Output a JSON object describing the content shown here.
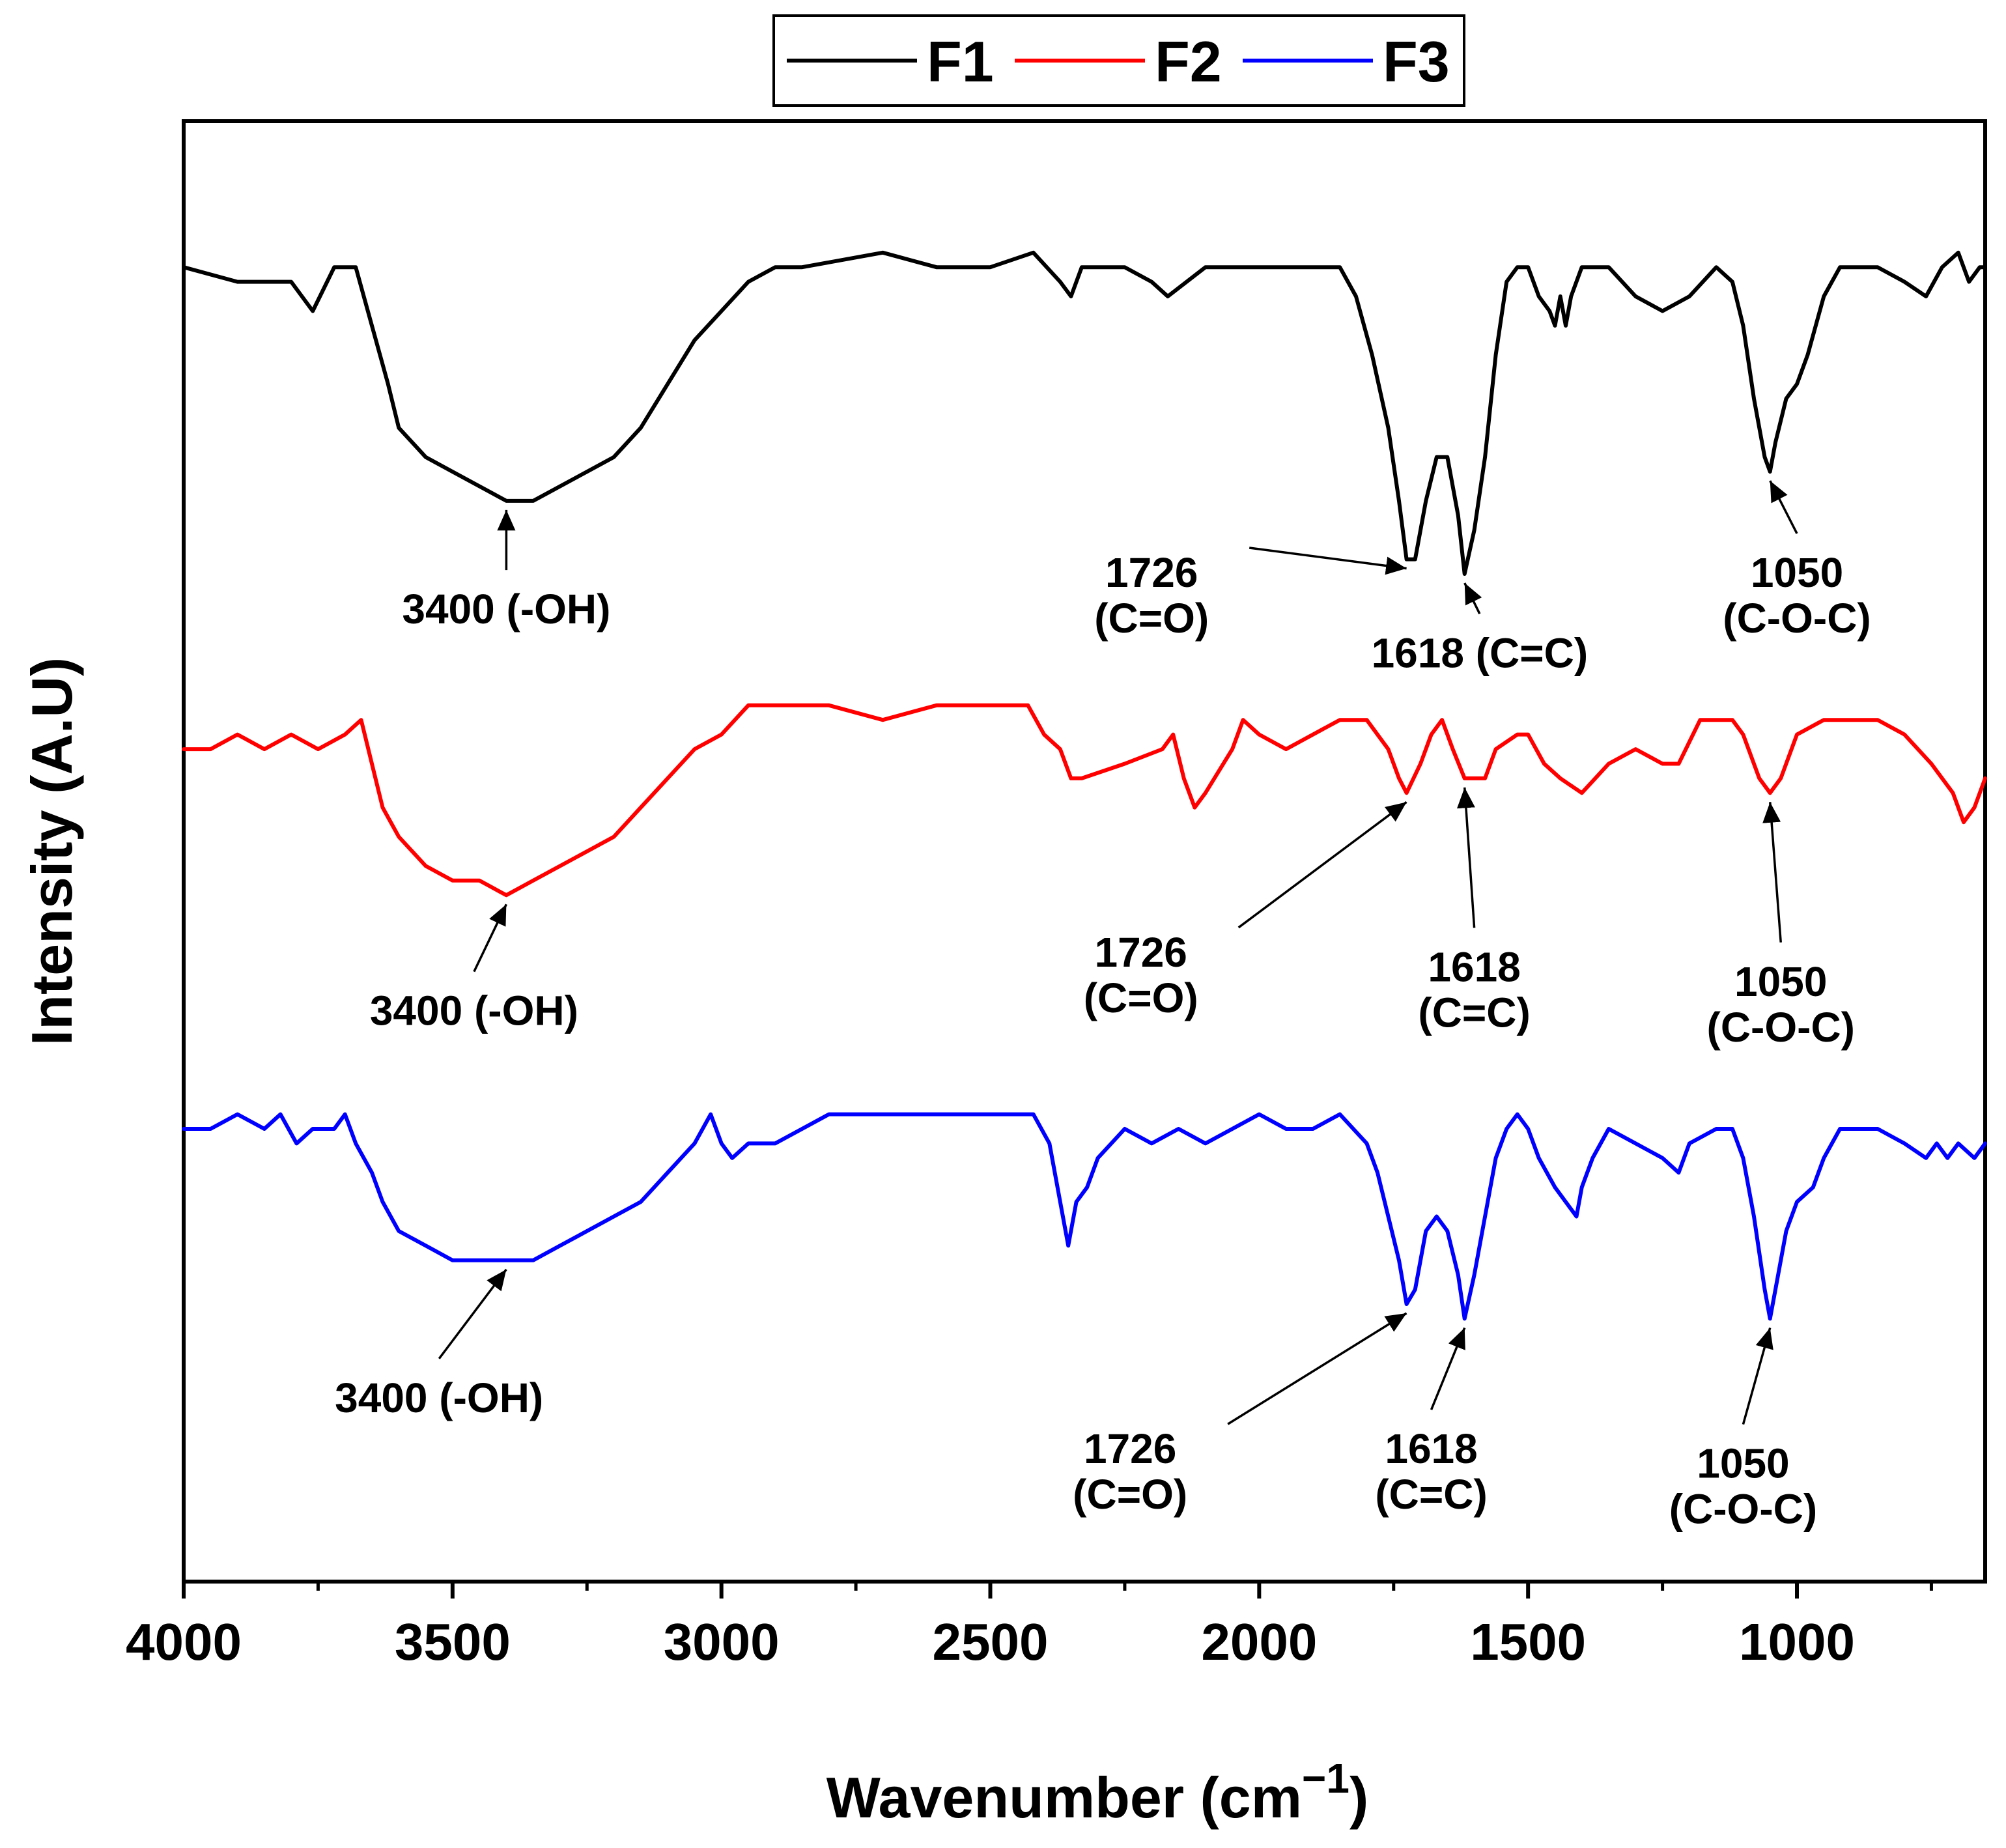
{
  "chart_data": {
    "type": "line",
    "title": "",
    "xlabel": "Wavenumber (cm",
    "xlabel_sup": "−1",
    "xlabel_close": ")",
    "ylabel": "Intensity (A.U)",
    "xlim": [
      4000,
      650
    ],
    "x_reversed": true,
    "x_ticks": [
      4000,
      3500,
      3000,
      2500,
      2000,
      1500,
      1000
    ],
    "x_tick_labels": [
      "4000",
      "3500",
      "3000",
      "2500",
      "2000",
      "1500",
      "1000"
    ],
    "y_ticks_shown": false,
    "grid": false,
    "legend": {
      "placement": "top-center",
      "entries": [
        "F1",
        "F2",
        "F3"
      ]
    },
    "colors": {
      "F1": "#000000",
      "F2": "#ff0000",
      "F3": "#0000ff"
    },
    "series": [
      {
        "name": "F1",
        "color": "#000000",
        "points": [
          [
            4000,
            0.9
          ],
          [
            3900,
            0.89
          ],
          [
            3800,
            0.89
          ],
          [
            3760,
            0.87
          ],
          [
            3720,
            0.9
          ],
          [
            3680,
            0.9
          ],
          [
            3650,
            0.86
          ],
          [
            3620,
            0.82
          ],
          [
            3600,
            0.79
          ],
          [
            3550,
            0.77
          ],
          [
            3500,
            0.76
          ],
          [
            3450,
            0.75
          ],
          [
            3400,
            0.74
          ],
          [
            3350,
            0.74
          ],
          [
            3300,
            0.75
          ],
          [
            3250,
            0.76
          ],
          [
            3200,
            0.77
          ],
          [
            3150,
            0.79
          ],
          [
            3100,
            0.82
          ],
          [
            3050,
            0.85
          ],
          [
            3000,
            0.87
          ],
          [
            2950,
            0.89
          ],
          [
            2900,
            0.9
          ],
          [
            2850,
            0.9
          ],
          [
            2700,
            0.91
          ],
          [
            2600,
            0.9
          ],
          [
            2500,
            0.9
          ],
          [
            2420,
            0.91
          ],
          [
            2370,
            0.89
          ],
          [
            2350,
            0.88
          ],
          [
            2330,
            0.9
          ],
          [
            2250,
            0.9
          ],
          [
            2200,
            0.89
          ],
          [
            2170,
            0.88
          ],
          [
            2100,
            0.9
          ],
          [
            2000,
            0.9
          ],
          [
            1900,
            0.9
          ],
          [
            1850,
            0.9
          ],
          [
            1820,
            0.88
          ],
          [
            1790,
            0.84
          ],
          [
            1760,
            0.79
          ],
          [
            1740,
            0.74
          ],
          [
            1726,
            0.7
          ],
          [
            1710,
            0.7
          ],
          [
            1690,
            0.74
          ],
          [
            1670,
            0.77
          ],
          [
            1650,
            0.77
          ],
          [
            1630,
            0.73
          ],
          [
            1618,
            0.69
          ],
          [
            1600,
            0.72
          ],
          [
            1580,
            0.77
          ],
          [
            1560,
            0.84
          ],
          [
            1540,
            0.89
          ],
          [
            1520,
            0.9
          ],
          [
            1500,
            0.9
          ],
          [
            1480,
            0.88
          ],
          [
            1460,
            0.87
          ],
          [
            1450,
            0.86
          ],
          [
            1440,
            0.88
          ],
          [
            1430,
            0.86
          ],
          [
            1420,
            0.88
          ],
          [
            1400,
            0.9
          ],
          [
            1350,
            0.9
          ],
          [
            1300,
            0.88
          ],
          [
            1250,
            0.87
          ],
          [
            1200,
            0.88
          ],
          [
            1150,
            0.9
          ],
          [
            1120,
            0.89
          ],
          [
            1100,
            0.86
          ],
          [
            1080,
            0.81
          ],
          [
            1060,
            0.77
          ],
          [
            1050,
            0.76
          ],
          [
            1040,
            0.78
          ],
          [
            1020,
            0.81
          ],
          [
            1000,
            0.82
          ],
          [
            980,
            0.84
          ],
          [
            950,
            0.88
          ],
          [
            920,
            0.9
          ],
          [
            880,
            0.9
          ],
          [
            850,
            0.9
          ],
          [
            800,
            0.89
          ],
          [
            760,
            0.88
          ],
          [
            730,
            0.9
          ],
          [
            700,
            0.91
          ],
          [
            680,
            0.89
          ],
          [
            660,
            0.9
          ],
          [
            650,
            0.9
          ]
        ]
      },
      {
        "name": "F2",
        "color": "#ff0000",
        "points": [
          [
            4000,
            0.57
          ],
          [
            3950,
            0.57
          ],
          [
            3900,
            0.58
          ],
          [
            3850,
            0.57
          ],
          [
            3800,
            0.58
          ],
          [
            3750,
            0.57
          ],
          [
            3700,
            0.58
          ],
          [
            3670,
            0.59
          ],
          [
            3650,
            0.56
          ],
          [
            3630,
            0.53
          ],
          [
            3600,
            0.51
          ],
          [
            3550,
            0.49
          ],
          [
            3500,
            0.48
          ],
          [
            3450,
            0.48
          ],
          [
            3400,
            0.47
          ],
          [
            3350,
            0.48
          ],
          [
            3300,
            0.49
          ],
          [
            3250,
            0.5
          ],
          [
            3200,
            0.51
          ],
          [
            3150,
            0.53
          ],
          [
            3100,
            0.55
          ],
          [
            3050,
            0.57
          ],
          [
            3000,
            0.58
          ],
          [
            2950,
            0.6
          ],
          [
            2900,
            0.6
          ],
          [
            2800,
            0.6
          ],
          [
            2700,
            0.59
          ],
          [
            2600,
            0.6
          ],
          [
            2500,
            0.6
          ],
          [
            2430,
            0.6
          ],
          [
            2400,
            0.58
          ],
          [
            2370,
            0.57
          ],
          [
            2350,
            0.55
          ],
          [
            2330,
            0.55
          ],
          [
            2250,
            0.56
          ],
          [
            2180,
            0.57
          ],
          [
            2160,
            0.58
          ],
          [
            2140,
            0.55
          ],
          [
            2120,
            0.53
          ],
          [
            2100,
            0.54
          ],
          [
            2050,
            0.57
          ],
          [
            2030,
            0.59
          ],
          [
            2000,
            0.58
          ],
          [
            1950,
            0.57
          ],
          [
            1900,
            0.58
          ],
          [
            1850,
            0.59
          ],
          [
            1800,
            0.59
          ],
          [
            1760,
            0.57
          ],
          [
            1740,
            0.55
          ],
          [
            1726,
            0.54
          ],
          [
            1700,
            0.56
          ],
          [
            1680,
            0.58
          ],
          [
            1660,
            0.59
          ],
          [
            1640,
            0.57
          ],
          [
            1618,
            0.55
          ],
          [
            1600,
            0.55
          ],
          [
            1580,
            0.55
          ],
          [
            1560,
            0.57
          ],
          [
            1520,
            0.58
          ],
          [
            1500,
            0.58
          ],
          [
            1470,
            0.56
          ],
          [
            1440,
            0.55
          ],
          [
            1400,
            0.54
          ],
          [
            1350,
            0.56
          ],
          [
            1300,
            0.57
          ],
          [
            1250,
            0.56
          ],
          [
            1220,
            0.56
          ],
          [
            1180,
            0.59
          ],
          [
            1150,
            0.59
          ],
          [
            1120,
            0.59
          ],
          [
            1100,
            0.58
          ],
          [
            1070,
            0.55
          ],
          [
            1050,
            0.54
          ],
          [
            1030,
            0.55
          ],
          [
            1000,
            0.58
          ],
          [
            950,
            0.59
          ],
          [
            900,
            0.59
          ],
          [
            850,
            0.59
          ],
          [
            800,
            0.58
          ],
          [
            750,
            0.56
          ],
          [
            710,
            0.54
          ],
          [
            690,
            0.52
          ],
          [
            670,
            0.53
          ],
          [
            650,
            0.55
          ]
        ]
      },
      {
        "name": "F3",
        "color": "#0000ff",
        "points": [
          [
            4000,
            0.31
          ],
          [
            3950,
            0.31
          ],
          [
            3900,
            0.32
          ],
          [
            3850,
            0.31
          ],
          [
            3820,
            0.32
          ],
          [
            3790,
            0.3
          ],
          [
            3760,
            0.31
          ],
          [
            3720,
            0.31
          ],
          [
            3700,
            0.32
          ],
          [
            3680,
            0.3
          ],
          [
            3650,
            0.28
          ],
          [
            3630,
            0.26
          ],
          [
            3600,
            0.24
          ],
          [
            3550,
            0.23
          ],
          [
            3500,
            0.22
          ],
          [
            3450,
            0.22
          ],
          [
            3400,
            0.22
          ],
          [
            3350,
            0.22
          ],
          [
            3300,
            0.23
          ],
          [
            3250,
            0.24
          ],
          [
            3200,
            0.25
          ],
          [
            3150,
            0.26
          ],
          [
            3100,
            0.28
          ],
          [
            3050,
            0.3
          ],
          [
            3020,
            0.32
          ],
          [
            3000,
            0.3
          ],
          [
            2980,
            0.29
          ],
          [
            2950,
            0.3
          ],
          [
            2900,
            0.3
          ],
          [
            2850,
            0.31
          ],
          [
            2800,
            0.32
          ],
          [
            2700,
            0.32
          ],
          [
            2600,
            0.32
          ],
          [
            2500,
            0.32
          ],
          [
            2420,
            0.32
          ],
          [
            2390,
            0.3
          ],
          [
            2370,
            0.26
          ],
          [
            2355,
            0.23
          ],
          [
            2340,
            0.26
          ],
          [
            2320,
            0.27
          ],
          [
            2300,
            0.29
          ],
          [
            2250,
            0.31
          ],
          [
            2200,
            0.3
          ],
          [
            2150,
            0.31
          ],
          [
            2100,
            0.3
          ],
          [
            2050,
            0.31
          ],
          [
            2000,
            0.32
          ],
          [
            1950,
            0.31
          ],
          [
            1900,
            0.31
          ],
          [
            1850,
            0.32
          ],
          [
            1800,
            0.3
          ],
          [
            1780,
            0.28
          ],
          [
            1760,
            0.25
          ],
          [
            1740,
            0.22
          ],
          [
            1726,
            0.19
          ],
          [
            1710,
            0.2
          ],
          [
            1690,
            0.24
          ],
          [
            1670,
            0.25
          ],
          [
            1650,
            0.24
          ],
          [
            1630,
            0.21
          ],
          [
            1618,
            0.18
          ],
          [
            1600,
            0.21
          ],
          [
            1580,
            0.25
          ],
          [
            1560,
            0.29
          ],
          [
            1540,
            0.31
          ],
          [
            1520,
            0.32
          ],
          [
            1500,
            0.31
          ],
          [
            1480,
            0.29
          ],
          [
            1450,
            0.27
          ],
          [
            1430,
            0.26
          ],
          [
            1410,
            0.25
          ],
          [
            1400,
            0.27
          ],
          [
            1380,
            0.29
          ],
          [
            1350,
            0.31
          ],
          [
            1300,
            0.3
          ],
          [
            1250,
            0.29
          ],
          [
            1220,
            0.28
          ],
          [
            1200,
            0.3
          ],
          [
            1150,
            0.31
          ],
          [
            1120,
            0.31
          ],
          [
            1100,
            0.29
          ],
          [
            1080,
            0.25
          ],
          [
            1060,
            0.2
          ],
          [
            1050,
            0.18
          ],
          [
            1040,
            0.2
          ],
          [
            1020,
            0.24
          ],
          [
            1000,
            0.26
          ],
          [
            970,
            0.27
          ],
          [
            950,
            0.29
          ],
          [
            920,
            0.31
          ],
          [
            880,
            0.31
          ],
          [
            850,
            0.31
          ],
          [
            800,
            0.3
          ],
          [
            760,
            0.29
          ],
          [
            740,
            0.3
          ],
          [
            720,
            0.29
          ],
          [
            700,
            0.3
          ],
          [
            670,
            0.29
          ],
          [
            650,
            0.3
          ]
        ]
      }
    ],
    "annotations": [
      {
        "series": "F1",
        "peak": 3400,
        "peak_y": 0.74,
        "lines": [
          "3400 (-OH)"
        ],
        "label_x": 3400,
        "label_y": 0.665,
        "anchor": "middle"
      },
      {
        "series": "F1",
        "peak": 1726,
        "peak_y": 0.7,
        "lines": [
          "1726",
          "(C=O)"
        ],
        "label_x": 2200,
        "label_y": 0.69,
        "anchor": "middle"
      },
      {
        "series": "F1",
        "peak": 1618,
        "peak_y": 0.69,
        "lines": [
          "1618 (C=C)"
        ],
        "label_x": 1590,
        "label_y": 0.635,
        "anchor": "middle"
      },
      {
        "series": "F1",
        "peak": 1050,
        "peak_y": 0.76,
        "lines": [
          "1050",
          "(C-O-C)"
        ],
        "label_x": 1000,
        "label_y": 0.69,
        "anchor": "middle"
      },
      {
        "series": "F2",
        "peak": 3400,
        "peak_y": 0.47,
        "lines": [
          "3400 (-OH)"
        ],
        "label_x": 3460,
        "label_y": 0.39,
        "anchor": "middle"
      },
      {
        "series": "F2",
        "peak": 1726,
        "peak_y": 0.54,
        "lines": [
          "1726",
          "(C=O)"
        ],
        "label_x": 2220,
        "label_y": 0.43,
        "anchor": "middle"
      },
      {
        "series": "F2",
        "peak": 1618,
        "peak_y": 0.55,
        "lines": [
          "1618",
          "(C=C)"
        ],
        "label_x": 1600,
        "label_y": 0.42,
        "anchor": "middle"
      },
      {
        "series": "F2",
        "peak": 1050,
        "peak_y": 0.54,
        "lines": [
          "1050",
          "(C-O-C)"
        ],
        "label_x": 1030,
        "label_y": 0.41,
        "anchor": "middle"
      },
      {
        "series": "F3",
        "peak": 3400,
        "peak_y": 0.22,
        "lines": [
          "3400 (-OH)"
        ],
        "label_x": 3525,
        "label_y": 0.125,
        "anchor": "middle"
      },
      {
        "series": "F3",
        "peak": 1726,
        "peak_y": 0.19,
        "lines": [
          "1726",
          "(C=O)"
        ],
        "label_x": 2240,
        "label_y": 0.09,
        "anchor": "middle"
      },
      {
        "series": "F3",
        "peak": 1618,
        "peak_y": 0.18,
        "lines": [
          "1618",
          "(C=C)"
        ],
        "label_x": 1680,
        "label_y": 0.09,
        "anchor": "middle"
      },
      {
        "series": "F3",
        "peak": 1050,
        "peak_y": 0.18,
        "lines": [
          "1050",
          "(C-O-C)"
        ],
        "label_x": 1100,
        "label_y": 0.08,
        "anchor": "middle"
      }
    ]
  }
}
